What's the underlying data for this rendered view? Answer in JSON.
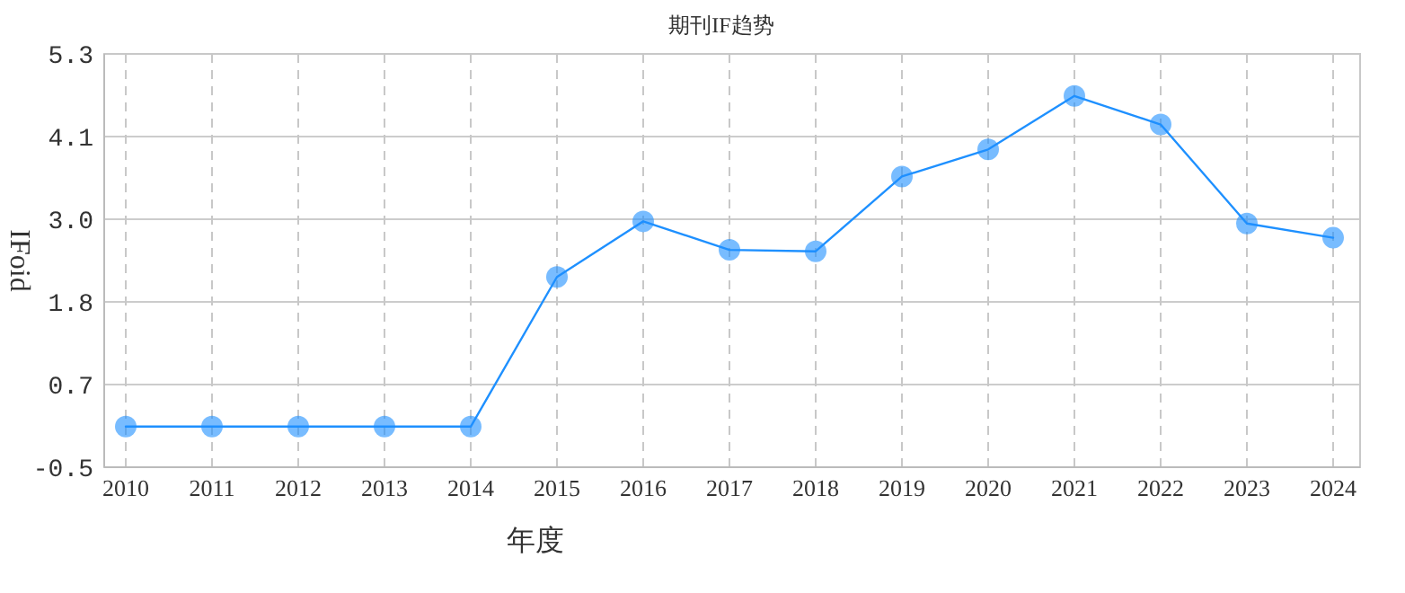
{
  "chart_data": {
    "type": "line",
    "title": "期刊IF趋势",
    "xlabel": "年度",
    "ylabel": "IFoid",
    "categories": [
      "2010",
      "2011",
      "2012",
      "2013",
      "2014",
      "2015",
      "2016",
      "2017",
      "2018",
      "2019",
      "2020",
      "2021",
      "2022",
      "2023",
      "2024"
    ],
    "series": [
      {
        "color": "#1e90ff",
        "values": [
          0.07,
          0.07,
          0.07,
          0.07,
          0.07,
          2.17,
          2.95,
          2.55,
          2.53,
          3.58,
          3.96,
          4.71,
          4.31,
          2.92,
          2.72
        ]
      }
    ],
    "ylim": [
      -0.5,
      5.3
    ],
    "yticks": [
      -0.5,
      {
        "value": 0.66,
        "label": "0.7"
      },
      {
        "value": 1.82,
        "label": "1.8"
      },
      {
        "value": 2.98,
        "label": "3.0"
      },
      {
        "value": 4.14,
        "label": "4.1"
      },
      5.3
    ],
    "grid": true,
    "marker": "circle",
    "line_style": "solid"
  }
}
